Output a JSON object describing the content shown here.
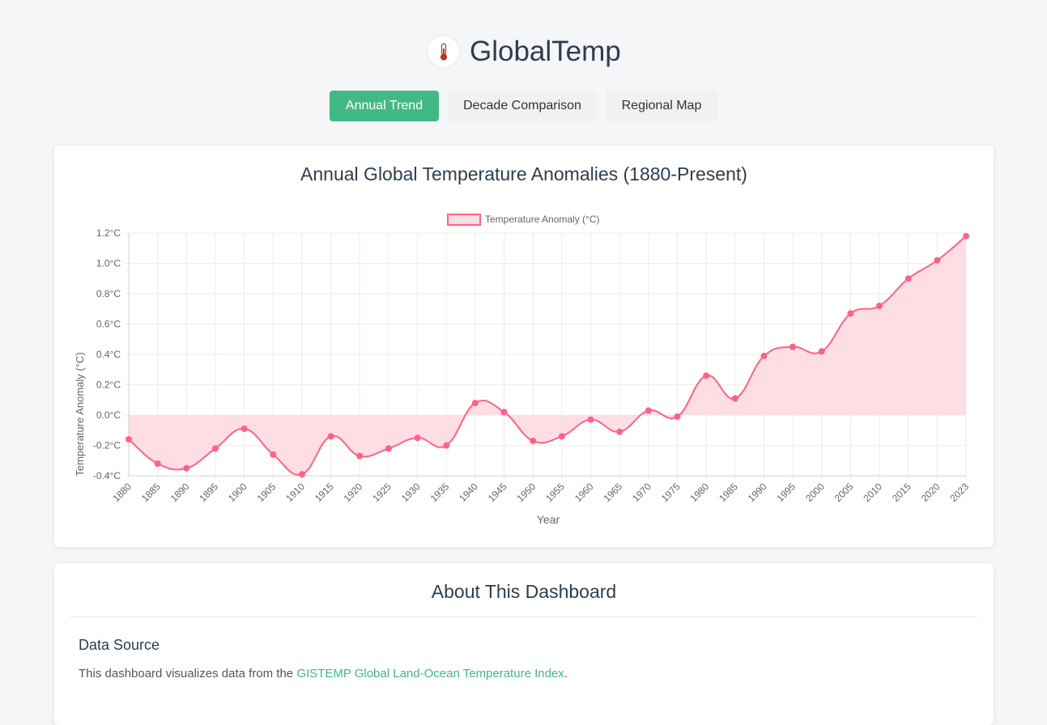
{
  "app": {
    "title": "GlobalTemp",
    "logo_icon": "thermometer-icon"
  },
  "tabs": [
    {
      "label": "Annual Trend",
      "active": true
    },
    {
      "label": "Decade Comparison",
      "active": false
    },
    {
      "label": "Regional Map",
      "active": false
    }
  ],
  "colors": {
    "accent": "#42b983",
    "series_line": "#ff6384",
    "series_fill": "#ffdde4"
  },
  "chart_data": {
    "type": "area",
    "title": "Annual Global Temperature Anomalies (1880-Present)",
    "xlabel": "Year",
    "ylabel": "Temperature Anomaly (°C)",
    "y_tick_suffix": "°C",
    "ylim": [
      -0.4,
      1.2
    ],
    "y_ticks": [
      -0.4,
      -0.2,
      0.0,
      0.2,
      0.4,
      0.6,
      0.8,
      1.0,
      1.2
    ],
    "y_tick_labels": [
      "-0.4°C",
      "-0.2°C",
      "0.0°C",
      "0.2°C",
      "0.4°C",
      "0.6°C",
      "0.8°C",
      "1.0°C",
      "1.2°C"
    ],
    "legend_position": "top-center",
    "grid": true,
    "categories": [
      "1880",
      "1885",
      "1890",
      "1895",
      "1900",
      "1905",
      "1910",
      "1915",
      "1920",
      "1925",
      "1930",
      "1935",
      "1940",
      "1945",
      "1950",
      "1955",
      "1960",
      "1965",
      "1970",
      "1975",
      "1980",
      "1985",
      "1990",
      "1995",
      "2000",
      "2005",
      "2010",
      "2015",
      "2020",
      "2023"
    ],
    "series": [
      {
        "name": "Temperature Anomaly (°C)",
        "values": [
          -0.16,
          -0.32,
          -0.35,
          -0.22,
          -0.09,
          -0.26,
          -0.39,
          -0.14,
          -0.27,
          -0.22,
          -0.15,
          -0.2,
          0.08,
          0.02,
          -0.17,
          -0.14,
          -0.03,
          -0.11,
          0.03,
          -0.01,
          0.26,
          0.11,
          0.39,
          0.45,
          0.42,
          0.67,
          0.72,
          0.9,
          1.02,
          1.18
        ]
      }
    ]
  },
  "about": {
    "title": "About This Dashboard",
    "data_source_heading": "Data Source",
    "data_source_text_prefix": "This dashboard visualizes data from the ",
    "data_source_link": "GISTEMP Global Land-Ocean Temperature Index",
    "data_source_text_suffix": "."
  }
}
